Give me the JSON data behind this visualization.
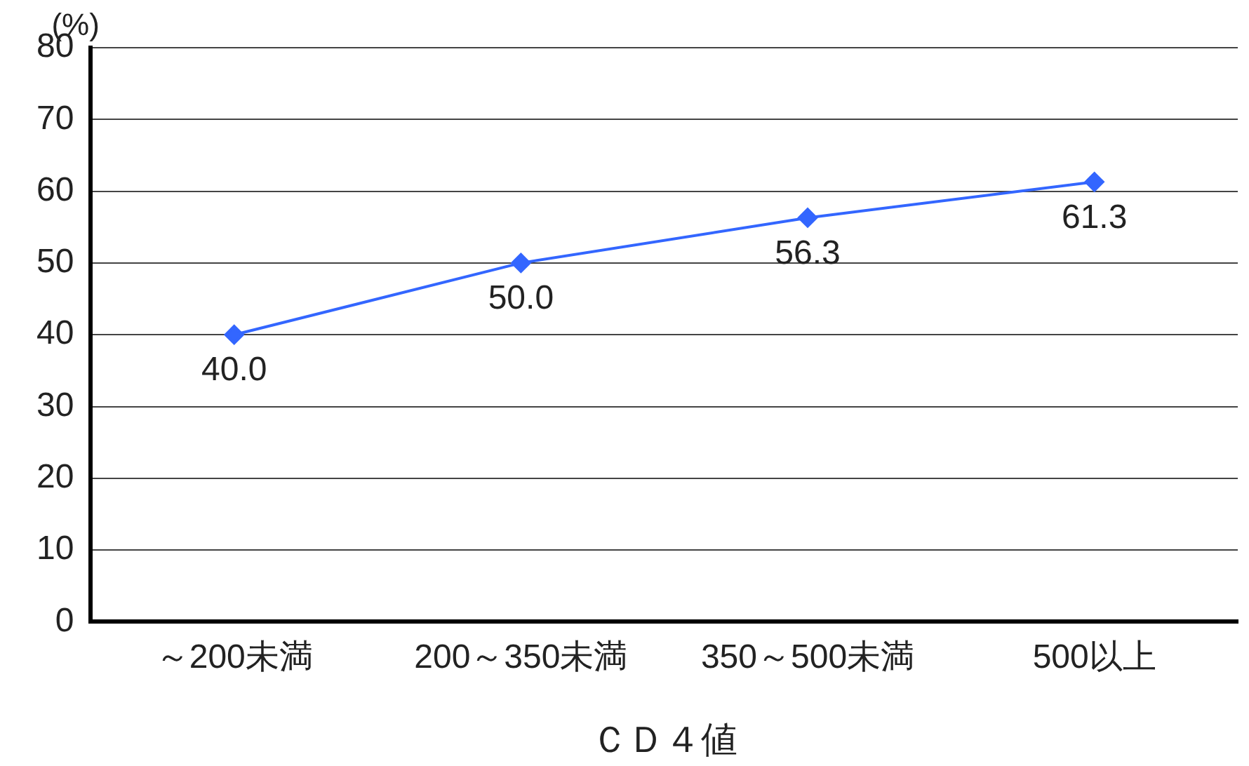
{
  "chart_data": {
    "type": "line",
    "ylabel": "(%)",
    "xlabel": "ＣＤ４値",
    "categories": [
      "～200未満",
      "200～350未満",
      "350～500未満",
      "500以上"
    ],
    "series": [
      {
        "color": "#3366ff",
        "values": [
          40.0,
          50.0,
          56.3,
          61.3
        ],
        "value_labels": [
          "40.0",
          "50.0",
          "56.3",
          "61.3"
        ]
      }
    ],
    "ylim": [
      0,
      80
    ],
    "yticks": [
      0,
      10,
      20,
      30,
      40,
      50,
      60,
      70,
      80
    ],
    "grid": "y",
    "legend": false,
    "marker": "diamond",
    "line_style": "solid"
  }
}
